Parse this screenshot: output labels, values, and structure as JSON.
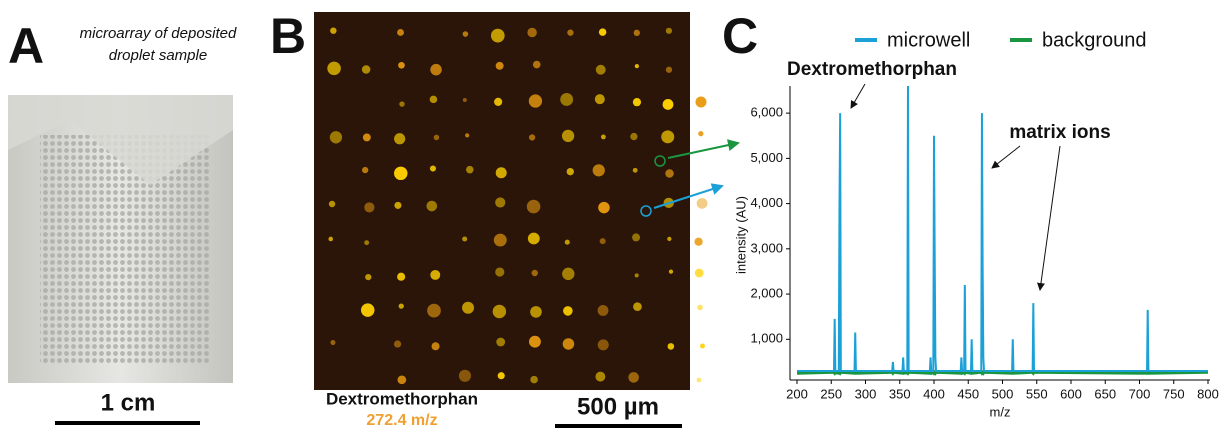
{
  "panel_a": {
    "letter": "A",
    "caption": [
      "microarray of deposited",
      "droplet sample"
    ],
    "scale_label": "1 cm"
  },
  "panel_b": {
    "letter": "B",
    "compound": "Dextromethorphan",
    "mz": "272.4 m/z",
    "scale_label": "500 µm"
  },
  "chart_data": {
    "type": "line",
    "letter": "C",
    "x_label": "m/z",
    "y_label": "intensity (AU)",
    "annotations": [
      "Dextromethorphan",
      "matrix ions"
    ],
    "xlim": [
      200,
      800
    ],
    "xticks": [
      200,
      250,
      300,
      350,
      400,
      450,
      500,
      550,
      600,
      650,
      700,
      750,
      800
    ],
    "ylim": [
      100,
      6600
    ],
    "yticks": [
      {
        "value": 1000,
        "label": "1,000"
      },
      {
        "value": 2000,
        "label": "2,000"
      },
      {
        "value": 3000,
        "label": "3,000"
      },
      {
        "value": 4000,
        "label": "4,000"
      },
      {
        "value": 5000,
        "label": "5,000"
      },
      {
        "value": 6000,
        "label": "6,000"
      }
    ],
    "x": [
      200,
      254,
      255,
      256,
      261,
      262,
      263,
      264,
      284,
      285,
      286,
      339,
      340,
      341,
      354,
      355,
      356,
      361,
      362,
      363,
      394,
      395,
      396,
      399,
      400,
      401,
      402,
      403,
      439,
      440,
      441,
      444,
      445,
      446,
      454,
      455,
      456,
      469,
      470,
      471,
      472,
      473,
      514,
      515,
      516,
      544,
      545,
      546,
      711,
      712,
      713,
      800
    ],
    "series": [
      {
        "name": "microwell",
        "color": "#1ba1d8",
        "values": [
          300,
          300,
          1450,
          300,
          300,
          3900,
          6000,
          300,
          300,
          1150,
          300,
          300,
          500,
          300,
          300,
          600,
          300,
          300,
          6600,
          300,
          300,
          600,
          300,
          300,
          5500,
          2900,
          600,
          300,
          300,
          600,
          300,
          300,
          2200,
          300,
          300,
          1000,
          300,
          300,
          6000,
          2600,
          600,
          300,
          300,
          1000,
          300,
          300,
          1800,
          300,
          300,
          1650,
          300,
          300
        ]
      },
      {
        "name": "background",
        "color": "#1a9641",
        "values": [
          250,
          270,
          250,
          270,
          250,
          270,
          250,
          270,
          250,
          270,
          250,
          270,
          250,
          270,
          250,
          270,
          250,
          270,
          250,
          270,
          250,
          270,
          250,
          270,
          250,
          270,
          250,
          270,
          250,
          270,
          250,
          270,
          250,
          270,
          250,
          270,
          250,
          270,
          250,
          270,
          250,
          270,
          250,
          270,
          250,
          270,
          250,
          270,
          250,
          270,
          250,
          270
        ]
      }
    ]
  }
}
